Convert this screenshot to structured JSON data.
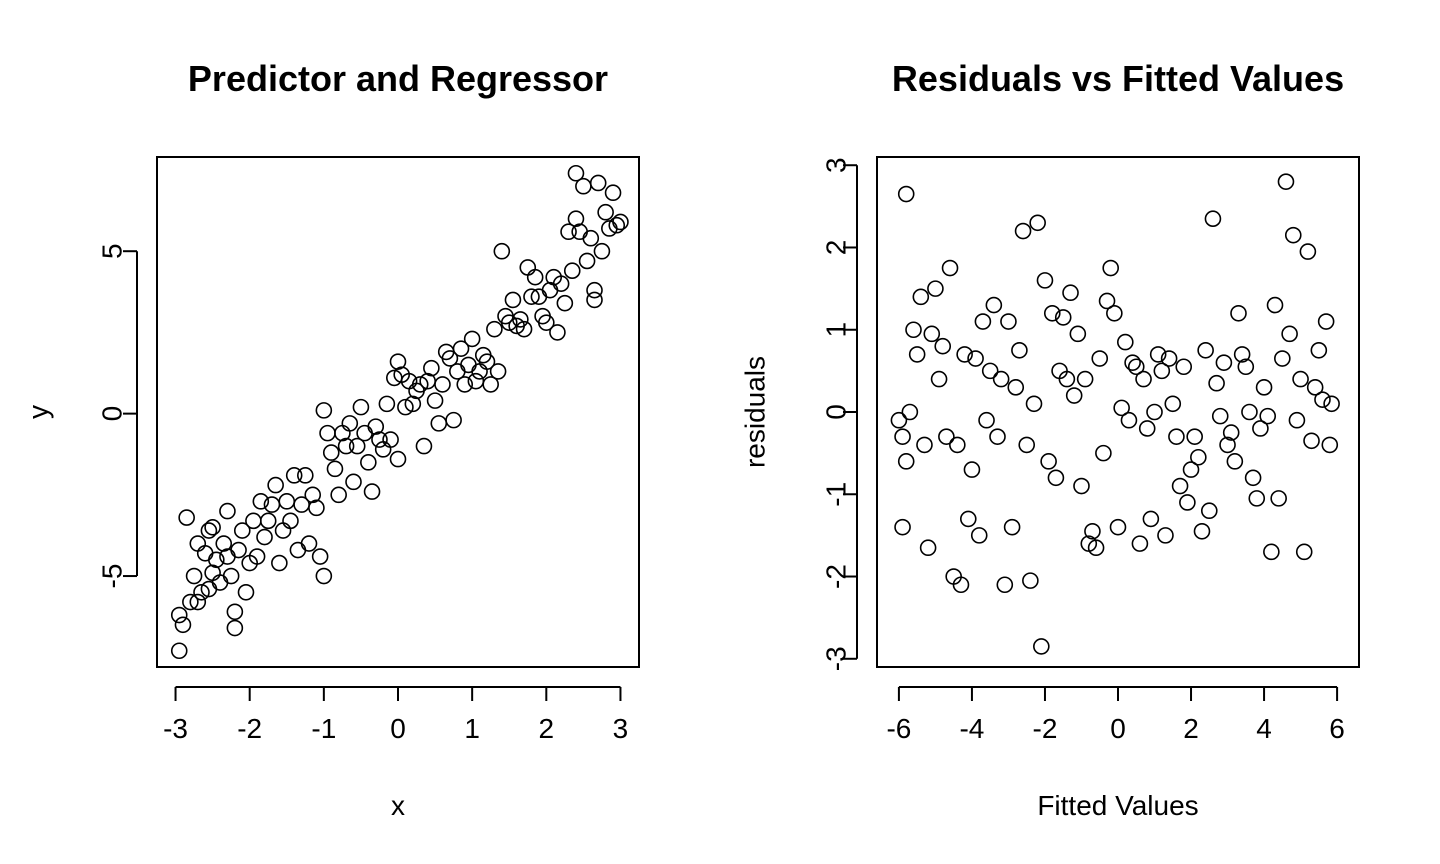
{
  "chart_data": [
    {
      "type": "scatter",
      "title": "Predictor and Regressor",
      "xlabel": "x",
      "ylabel": "y",
      "xlim": [
        -3.25,
        3.25
      ],
      "ylim": [
        -7.8,
        7.9
      ],
      "xticks": [
        -3,
        -2,
        -1,
        0,
        1,
        2,
        3
      ],
      "xtick_labels": [
        "-3",
        "-2",
        "-1",
        "0",
        "1",
        "2",
        "3"
      ],
      "yticks": [
        -5,
        0,
        5
      ],
      "ytick_labels": [
        "-5",
        "0",
        "5"
      ],
      "grid": false,
      "marker": "open-circle",
      "points": [
        [
          -2.95,
          -7.3
        ],
        [
          -2.9,
          -6.5
        ],
        [
          -2.95,
          -6.2
        ],
        [
          -2.85,
          -3.2
        ],
        [
          -2.8,
          -5.8
        ],
        [
          -2.75,
          -5.0
        ],
        [
          -2.7,
          -5.8
        ],
        [
          -2.7,
          -4.0
        ],
        [
          -2.65,
          -5.5
        ],
        [
          -2.6,
          -4.3
        ],
        [
          -2.55,
          -5.4
        ],
        [
          -2.55,
          -3.6
        ],
        [
          -2.5,
          -4.9
        ],
        [
          -2.5,
          -3.5
        ],
        [
          -2.45,
          -4.5
        ],
        [
          -2.4,
          -5.2
        ],
        [
          -2.35,
          -4.0
        ],
        [
          -2.3,
          -3.0
        ],
        [
          -2.3,
          -4.4
        ],
        [
          -2.25,
          -5.0
        ],
        [
          -2.2,
          -6.1
        ],
        [
          -2.2,
          -6.6
        ],
        [
          -2.15,
          -4.2
        ],
        [
          -2.1,
          -3.6
        ],
        [
          -2.05,
          -5.5
        ],
        [
          -2.0,
          -4.6
        ],
        [
          -1.95,
          -3.3
        ],
        [
          -1.9,
          -4.4
        ],
        [
          -1.85,
          -2.7
        ],
        [
          -1.8,
          -3.8
        ],
        [
          -1.75,
          -3.3
        ],
        [
          -1.7,
          -2.8
        ],
        [
          -1.65,
          -2.2
        ],
        [
          -1.6,
          -4.6
        ],
        [
          -1.55,
          -3.6
        ],
        [
          -1.5,
          -2.7
        ],
        [
          -1.45,
          -3.3
        ],
        [
          -1.4,
          -1.9
        ],
        [
          -1.35,
          -4.2
        ],
        [
          -1.3,
          -2.8
        ],
        [
          -1.25,
          -1.9
        ],
        [
          -1.2,
          -4.0
        ],
        [
          -1.15,
          -2.5
        ],
        [
          -1.1,
          -2.9
        ],
        [
          -1.05,
          -4.4
        ],
        [
          -1.0,
          -5.0
        ],
        [
          -1.0,
          0.1
        ],
        [
          -0.95,
          -0.6
        ],
        [
          -0.9,
          -1.2
        ],
        [
          -0.85,
          -1.7
        ],
        [
          -0.8,
          -2.5
        ],
        [
          -0.75,
          -0.6
        ],
        [
          -0.7,
          -1.0
        ],
        [
          -0.65,
          -0.3
        ],
        [
          -0.6,
          -2.1
        ],
        [
          -0.55,
          -1.0
        ],
        [
          -0.5,
          0.2
        ],
        [
          -0.45,
          -0.6
        ],
        [
          -0.4,
          -1.5
        ],
        [
          -0.35,
          -2.4
        ],
        [
          -0.3,
          -0.4
        ],
        [
          -0.25,
          -0.8
        ],
        [
          -0.2,
          -1.1
        ],
        [
          -0.15,
          0.3
        ],
        [
          -0.1,
          -0.8
        ],
        [
          -0.05,
          1.1
        ],
        [
          0.0,
          1.6
        ],
        [
          0.0,
          -1.4
        ],
        [
          0.05,
          1.2
        ],
        [
          0.1,
          0.2
        ],
        [
          0.15,
          1.0
        ],
        [
          0.2,
          0.3
        ],
        [
          0.25,
          0.7
        ],
        [
          0.3,
          0.9
        ],
        [
          0.35,
          -1.0
        ],
        [
          0.4,
          1.0
        ],
        [
          0.45,
          1.4
        ],
        [
          0.5,
          0.4
        ],
        [
          0.55,
          -0.3
        ],
        [
          0.6,
          0.9
        ],
        [
          0.65,
          1.9
        ],
        [
          0.7,
          1.7
        ],
        [
          0.75,
          -0.2
        ],
        [
          0.8,
          1.3
        ],
        [
          0.85,
          2.0
        ],
        [
          0.9,
          0.9
        ],
        [
          0.95,
          1.5
        ],
        [
          1.0,
          2.3
        ],
        [
          1.05,
          1.0
        ],
        [
          1.1,
          1.3
        ],
        [
          1.15,
          1.8
        ],
        [
          1.2,
          1.6
        ],
        [
          1.25,
          0.9
        ],
        [
          1.3,
          2.6
        ],
        [
          1.35,
          1.3
        ],
        [
          1.4,
          5.0
        ],
        [
          1.45,
          3.0
        ],
        [
          1.5,
          2.8
        ],
        [
          1.55,
          3.5
        ],
        [
          1.6,
          2.7
        ],
        [
          1.65,
          2.9
        ],
        [
          1.7,
          2.6
        ],
        [
          1.75,
          4.5
        ],
        [
          1.8,
          3.6
        ],
        [
          1.85,
          4.2
        ],
        [
          1.9,
          3.6
        ],
        [
          1.95,
          3.0
        ],
        [
          2.0,
          2.8
        ],
        [
          2.05,
          3.8
        ],
        [
          2.1,
          4.2
        ],
        [
          2.15,
          2.5
        ],
        [
          2.2,
          4.0
        ],
        [
          2.25,
          3.4
        ],
        [
          2.3,
          5.6
        ],
        [
          2.35,
          4.4
        ],
        [
          2.4,
          6.0
        ],
        [
          2.4,
          7.4
        ],
        [
          2.45,
          5.6
        ],
        [
          2.5,
          7.0
        ],
        [
          2.55,
          4.7
        ],
        [
          2.6,
          5.4
        ],
        [
          2.65,
          3.8
        ],
        [
          2.65,
          3.5
        ],
        [
          2.7,
          7.1
        ],
        [
          2.75,
          5.0
        ],
        [
          2.8,
          6.2
        ],
        [
          2.85,
          5.7
        ],
        [
          2.9,
          6.8
        ],
        [
          2.95,
          5.8
        ],
        [
          3.0,
          5.9
        ]
      ]
    },
    {
      "type": "scatter",
      "title": "Residuals vs Fitted Values",
      "xlabel": "Fitted Values",
      "ylabel": "residuals",
      "xlim": [
        -6.6,
        6.6
      ],
      "ylim": [
        -3.1,
        3.1
      ],
      "xticks": [
        -6,
        -4,
        -2,
        0,
        2,
        4,
        6
      ],
      "xtick_labels": [
        "-6",
        "-4",
        "-2",
        "0",
        "2",
        "4",
        "6"
      ],
      "yticks": [
        -3,
        -2,
        -1,
        0,
        1,
        2,
        3
      ],
      "ytick_labels": [
        "-3",
        "-2",
        "-1",
        "0",
        "1",
        "2",
        "3"
      ],
      "grid": false,
      "marker": "open-circle",
      "points": [
        [
          -6.0,
          -0.1
        ],
        [
          -5.9,
          -1.4
        ],
        [
          -5.9,
          -0.3
        ],
        [
          -5.8,
          2.65
        ],
        [
          -5.8,
          -0.6
        ],
        [
          -5.7,
          0.0
        ],
        [
          -5.6,
          1.0
        ],
        [
          -5.5,
          0.7
        ],
        [
          -5.4,
          1.4
        ],
        [
          -5.3,
          -0.4
        ],
        [
          -5.2,
          -1.65
        ],
        [
          -5.1,
          0.95
        ],
        [
          -5.0,
          1.5
        ],
        [
          -4.9,
          0.4
        ],
        [
          -4.8,
          0.8
        ],
        [
          -4.7,
          -0.3
        ],
        [
          -4.6,
          1.75
        ],
        [
          -4.5,
          -2.0
        ],
        [
          -4.4,
          -0.4
        ],
        [
          -4.3,
          -2.1
        ],
        [
          -4.2,
          0.7
        ],
        [
          -4.1,
          -1.3
        ],
        [
          -4.0,
          -0.7
        ],
        [
          -3.9,
          0.65
        ],
        [
          -3.8,
          -1.5
        ],
        [
          -3.7,
          1.1
        ],
        [
          -3.6,
          -0.1
        ],
        [
          -3.5,
          0.5
        ],
        [
          -3.4,
          1.3
        ],
        [
          -3.3,
          -0.3
        ],
        [
          -3.2,
          0.4
        ],
        [
          -3.1,
          -2.1
        ],
        [
          -3.0,
          1.1
        ],
        [
          -2.9,
          -1.4
        ],
        [
          -2.8,
          0.3
        ],
        [
          -2.7,
          0.75
        ],
        [
          -2.6,
          2.2
        ],
        [
          -2.5,
          -0.4
        ],
        [
          -2.4,
          -2.05
        ],
        [
          -2.3,
          0.1
        ],
        [
          -2.2,
          2.3
        ],
        [
          -2.1,
          -2.85
        ],
        [
          -2.0,
          1.6
        ],
        [
          -1.9,
          -0.6
        ],
        [
          -1.8,
          1.2
        ],
        [
          -1.7,
          -0.8
        ],
        [
          -1.6,
          0.5
        ],
        [
          -1.5,
          1.15
        ],
        [
          -1.4,
          0.4
        ],
        [
          -1.3,
          1.45
        ],
        [
          -1.2,
          0.2
        ],
        [
          -1.1,
          0.95
        ],
        [
          -1.0,
          -0.9
        ],
        [
          -0.9,
          0.4
        ],
        [
          -0.8,
          -1.6
        ],
        [
          -0.7,
          -1.45
        ],
        [
          -0.6,
          -1.65
        ],
        [
          -0.5,
          0.65
        ],
        [
          -0.4,
          -0.5
        ],
        [
          -0.3,
          1.35
        ],
        [
          -0.2,
          1.75
        ],
        [
          -0.1,
          1.2
        ],
        [
          0.0,
          -1.4
        ],
        [
          0.1,
          0.05
        ],
        [
          0.2,
          0.85
        ],
        [
          0.3,
          -0.1
        ],
        [
          0.4,
          0.6
        ],
        [
          0.5,
          0.55
        ],
        [
          0.6,
          -1.6
        ],
        [
          0.7,
          0.4
        ],
        [
          0.8,
          -0.2
        ],
        [
          0.9,
          -1.3
        ],
        [
          1.0,
          0.0
        ],
        [
          1.1,
          0.7
        ],
        [
          1.2,
          0.5
        ],
        [
          1.3,
          -1.5
        ],
        [
          1.4,
          0.65
        ],
        [
          1.5,
          0.1
        ],
        [
          1.6,
          -0.3
        ],
        [
          1.7,
          -0.9
        ],
        [
          1.8,
          0.55
        ],
        [
          1.9,
          -1.1
        ],
        [
          2.0,
          -0.7
        ],
        [
          2.1,
          -0.3
        ],
        [
          2.2,
          -0.55
        ],
        [
          2.3,
          -1.45
        ],
        [
          2.4,
          0.75
        ],
        [
          2.5,
          -1.2
        ],
        [
          2.6,
          2.35
        ],
        [
          2.7,
          0.35
        ],
        [
          2.8,
          -0.05
        ],
        [
          2.9,
          0.6
        ],
        [
          3.0,
          -0.4
        ],
        [
          3.1,
          -0.25
        ],
        [
          3.2,
          -0.6
        ],
        [
          3.3,
          1.2
        ],
        [
          3.4,
          0.7
        ],
        [
          3.5,
          0.55
        ],
        [
          3.6,
          0.0
        ],
        [
          3.7,
          -0.8
        ],
        [
          3.8,
          -1.05
        ],
        [
          3.9,
          -0.2
        ],
        [
          4.0,
          0.3
        ],
        [
          4.1,
          -0.05
        ],
        [
          4.2,
          -1.7
        ],
        [
          4.3,
          1.3
        ],
        [
          4.4,
          -1.05
        ],
        [
          4.5,
          0.65
        ],
        [
          4.6,
          2.8
        ],
        [
          4.7,
          0.95
        ],
        [
          4.8,
          2.15
        ],
        [
          4.9,
          -0.1
        ],
        [
          5.0,
          0.4
        ],
        [
          5.1,
          -1.7
        ],
        [
          5.2,
          1.95
        ],
        [
          5.3,
          -0.35
        ],
        [
          5.4,
          0.3
        ],
        [
          5.5,
          0.75
        ],
        [
          5.6,
          0.15
        ],
        [
          5.7,
          1.1
        ],
        [
          5.8,
          -0.4
        ],
        [
          5.85,
          0.1
        ]
      ]
    }
  ]
}
